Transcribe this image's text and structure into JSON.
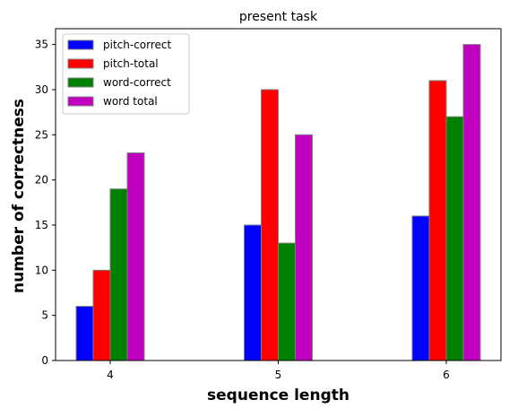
{
  "chart_data": {
    "type": "bar",
    "title": "present task",
    "xlabel": "sequence length",
    "ylabel": "number of correctness",
    "categories": [
      "4",
      "5",
      "6"
    ],
    "series": [
      {
        "name": "pitch-correct",
        "color": "#0000ff",
        "values": [
          6,
          15,
          16
        ]
      },
      {
        "name": "pitch-total",
        "color": "#ff0000",
        "values": [
          10,
          30,
          31
        ]
      },
      {
        "name": "word-correct",
        "color": "#008000",
        "values": [
          19,
          13,
          27
        ]
      },
      {
        "name": "word total",
        "color": "#bf00bf",
        "values": [
          23,
          25,
          35
        ]
      }
    ],
    "ylim": [
      0,
      36.75
    ],
    "yticks": [
      0,
      5,
      10,
      15,
      20,
      25,
      30,
      35
    ],
    "grid": false,
    "legend_position": "top-left",
    "bar_edge_color": "#808080"
  }
}
